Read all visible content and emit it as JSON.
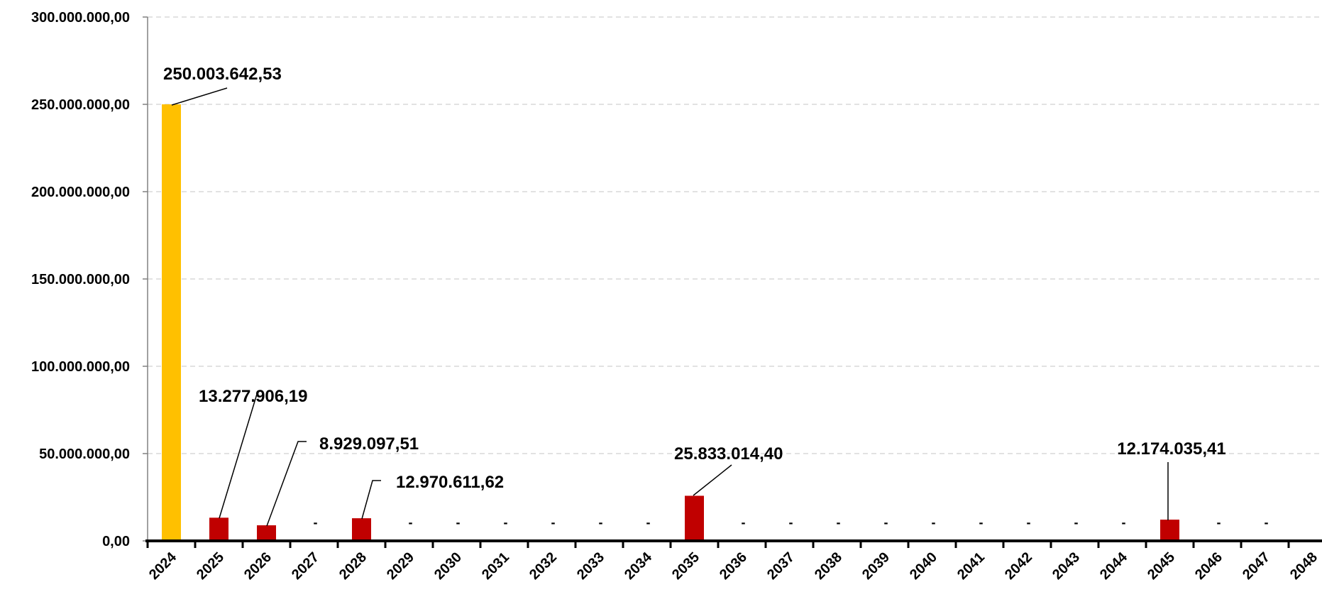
{
  "chart_data": {
    "type": "bar",
    "title": "",
    "xlabel": "",
    "ylabel": "",
    "ylim": [
      0,
      300000000
    ],
    "grid": true,
    "legend": "none",
    "y_ticks": [
      "0,00",
      "50.000.000,00",
      "100.000.000,00",
      "150.000.000,00",
      "200.000.000,00",
      "250.000.000,00",
      "300.000.000,00"
    ],
    "categories": [
      "2024",
      "2025",
      "2026",
      "2027",
      "2028",
      "2029",
      "2030",
      "2031",
      "2032",
      "2033",
      "2034",
      "2035",
      "2036",
      "2037",
      "2038",
      "2039",
      "2040",
      "2041",
      "2042",
      "2043",
      "2044",
      "2045",
      "2046",
      "2047",
      "2048"
    ],
    "values": [
      250003642.53,
      13277906.19,
      8929097.51,
      0,
      12970611.62,
      0,
      0,
      0,
      0,
      0,
      0,
      25833014.4,
      0,
      0,
      0,
      0,
      0,
      0,
      0,
      0,
      0,
      12174035.41,
      0,
      0,
      0
    ],
    "labels": [
      "250.003.642,53",
      "13.277.906,19",
      "8.929.097,51",
      "-",
      "12.970.611,62",
      "-",
      "-",
      "-",
      "-",
      "-",
      "-",
      "25.833.014,40",
      "-",
      "-",
      "-",
      "-",
      "-",
      "-",
      "-",
      "-",
      "-",
      "12.174.035,41",
      "-",
      "-",
      ""
    ],
    "bar_colors": [
      "#FFC000",
      "#C00000",
      "#C00000",
      "#C00000",
      "#C00000",
      "#C00000",
      "#C00000",
      "#C00000",
      "#C00000",
      "#C00000",
      "#C00000",
      "#C00000",
      "#C00000",
      "#C00000",
      "#C00000",
      "#C00000",
      "#C00000",
      "#C00000",
      "#C00000",
      "#C00000",
      "#C00000",
      "#C00000",
      "#C00000",
      "#C00000",
      "#C00000"
    ]
  }
}
